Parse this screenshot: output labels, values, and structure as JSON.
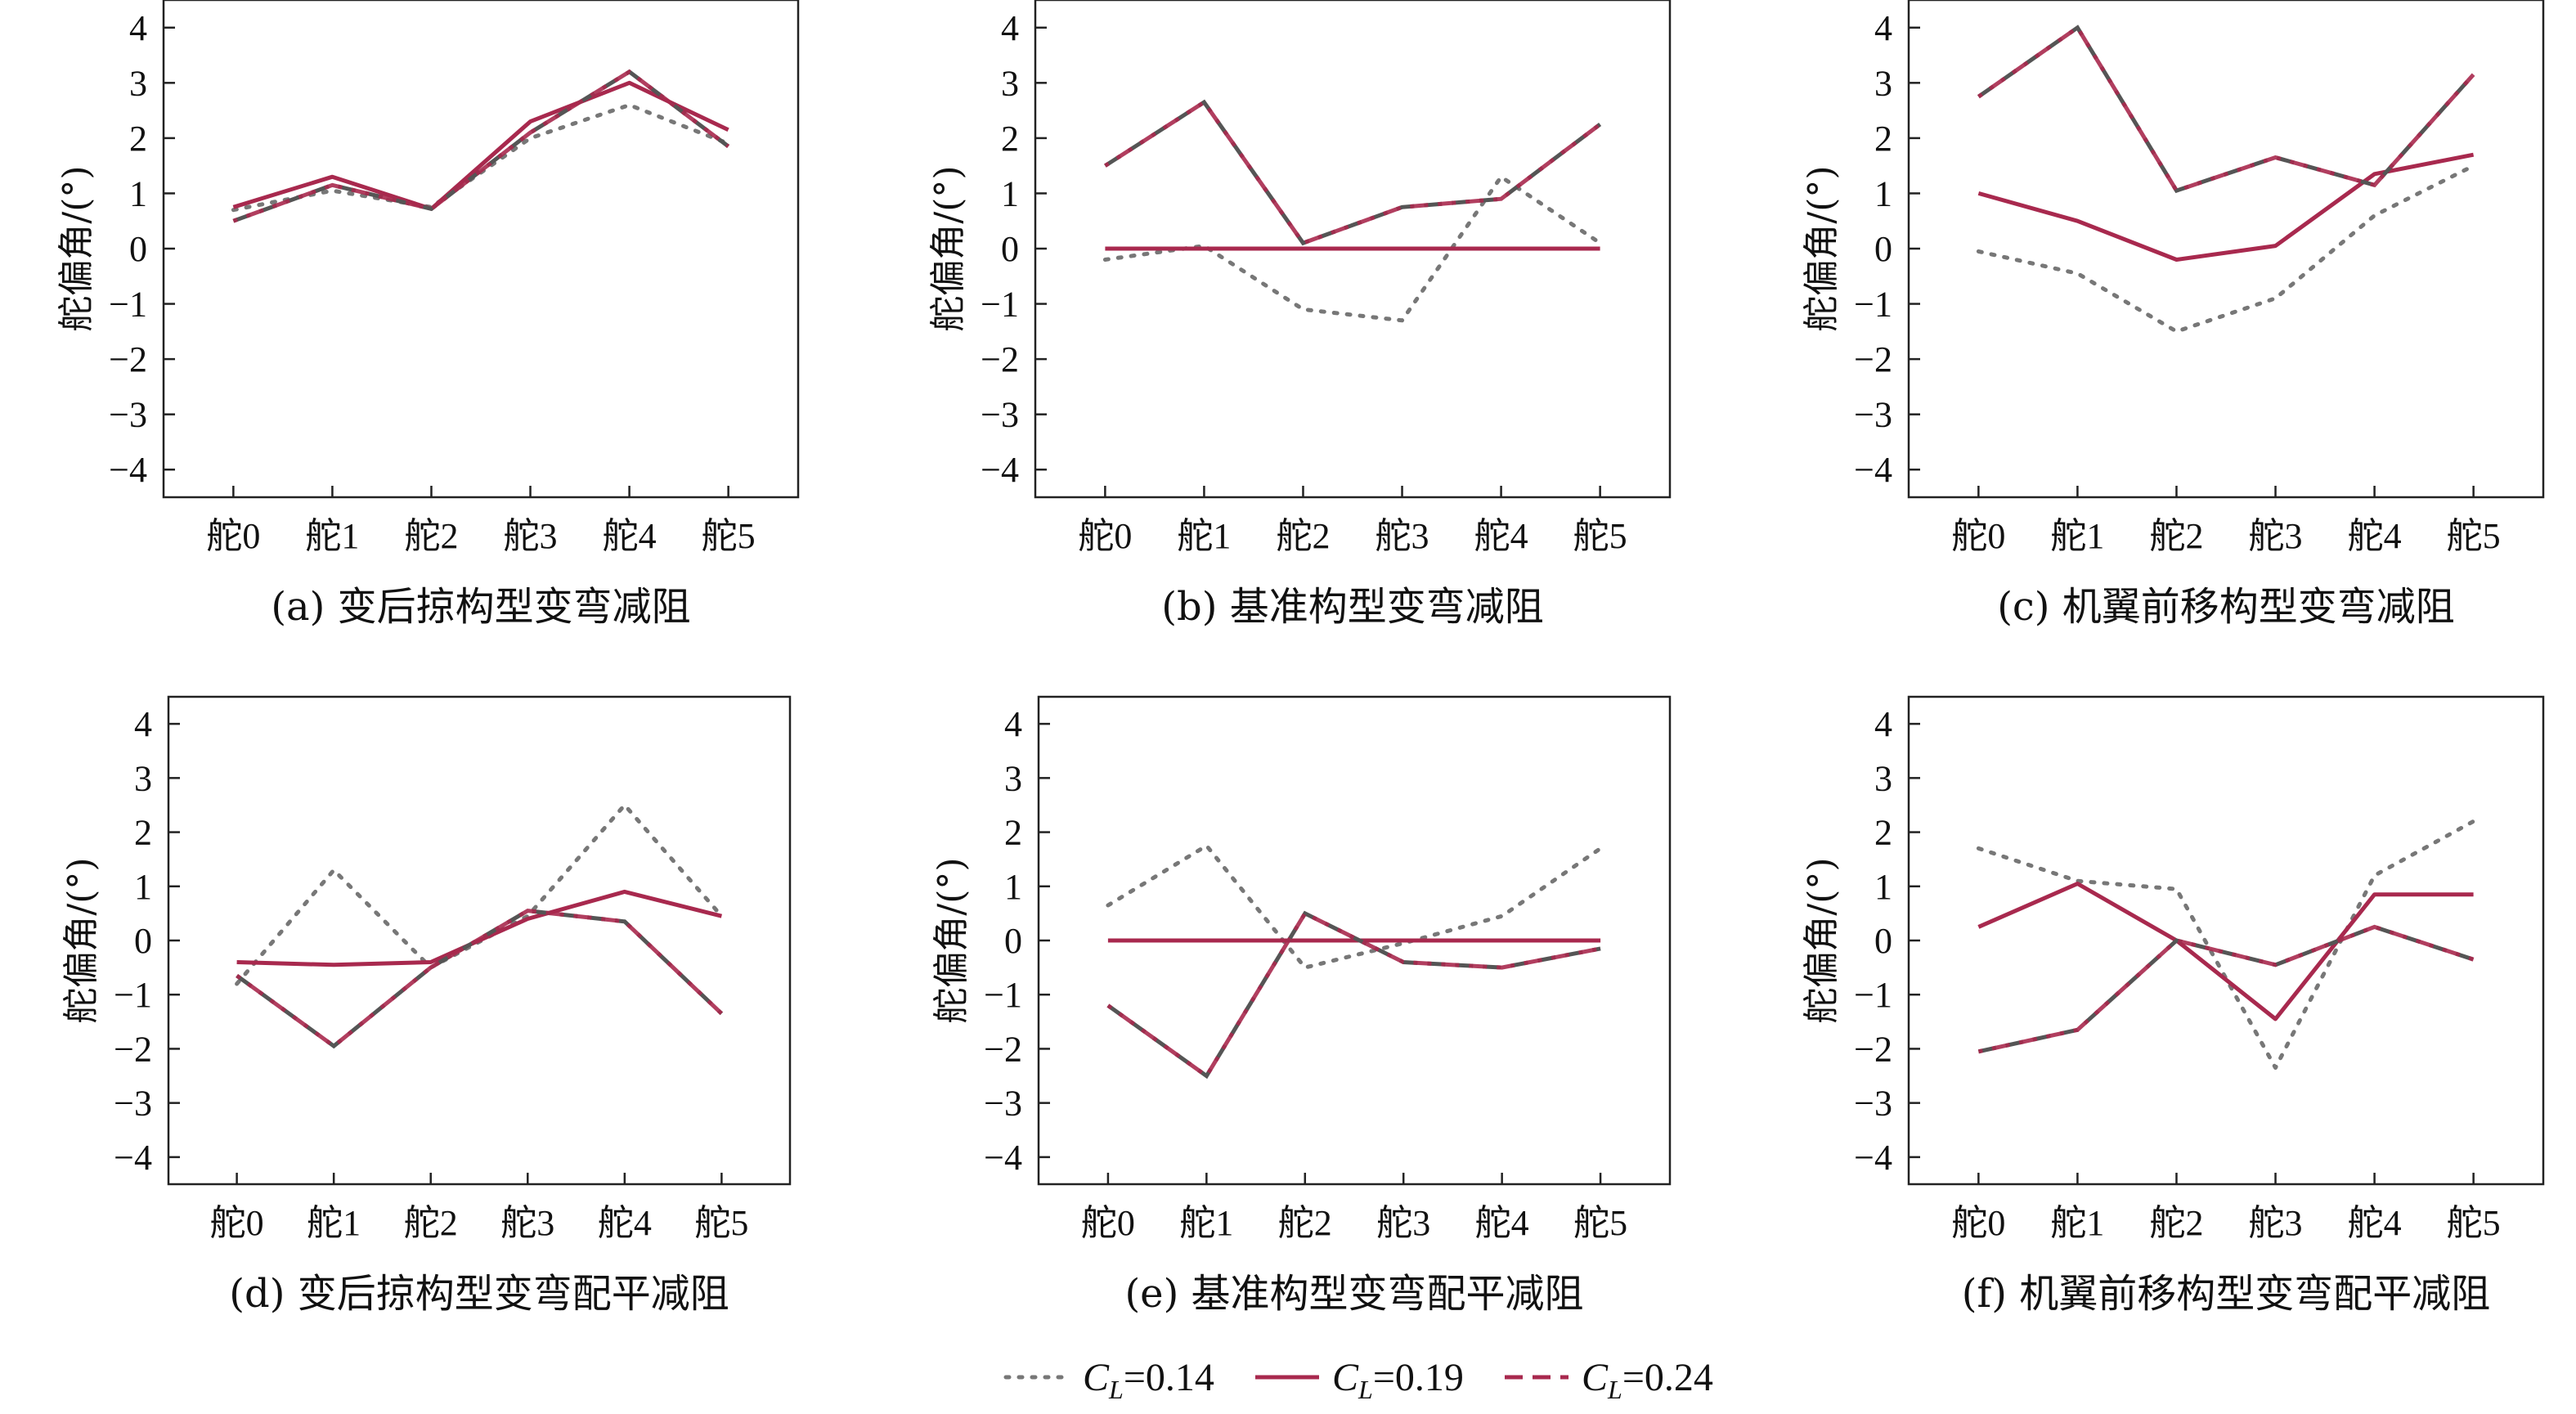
{
  "legend": [
    {
      "var": "C",
      "sub": "L",
      "value": "=0.14",
      "style": "dotted",
      "color": "#777777"
    },
    {
      "var": "C",
      "sub": "L",
      "value": "=0.19",
      "style": "solid",
      "color": "#a8294e"
    },
    {
      "var": "C",
      "sub": "L",
      "value": "=0.24",
      "style": "dashed",
      "color": "#a8294e"
    }
  ],
  "colors": {
    "series_014": "#777777",
    "series_019": "#a8294e",
    "series_024_a": "#a8294e",
    "series_024_b": "#555555"
  },
  "chart_data": [
    {
      "type": "line",
      "caption": "(a) 变后掠构型变弯减阻",
      "ylabel": "舵偏角/(°)",
      "categories": [
        "舵0",
        "舵1",
        "舵2",
        "舵3",
        "舵4",
        "舵5"
      ],
      "ylim": [
        -4.5,
        4.5
      ],
      "yticks": [
        -4,
        -3,
        -2,
        -1,
        0,
        1,
        2,
        3,
        4
      ],
      "series": [
        {
          "key": "014",
          "values": [
            0.7,
            1.05,
            0.75,
            2.0,
            2.6,
            1.9
          ]
        },
        {
          "key": "019",
          "values": [
            0.75,
            1.3,
            0.72,
            2.3,
            3.0,
            2.15
          ]
        },
        {
          "key": "024",
          "values": [
            0.5,
            1.15,
            0.72,
            2.1,
            3.2,
            1.85
          ]
        }
      ]
    },
    {
      "type": "line",
      "caption": "(b) 基准构型变弯减阻",
      "ylabel": "舵偏角/(°)",
      "categories": [
        "舵0",
        "舵1",
        "舵2",
        "舵3",
        "舵4",
        "舵5"
      ],
      "ylim": [
        -4.5,
        4.5
      ],
      "yticks": [
        -4,
        -3,
        -2,
        -1,
        0,
        1,
        2,
        3,
        4
      ],
      "series": [
        {
          "key": "014",
          "values": [
            -0.2,
            0.05,
            -1.1,
            -1.3,
            1.3,
            0.1
          ]
        },
        {
          "key": "019",
          "values": [
            0.0,
            0.0,
            0.0,
            0.0,
            0.0,
            0.0
          ]
        },
        {
          "key": "024",
          "values": [
            1.5,
            2.65,
            0.1,
            0.75,
            0.9,
            2.25
          ]
        }
      ]
    },
    {
      "type": "line",
      "caption": "(c) 机翼前移构型变弯减阻",
      "ylabel": "舵偏角/(°)",
      "categories": [
        "舵0",
        "舵1",
        "舵2",
        "舵3",
        "舵4",
        "舵5"
      ],
      "ylim": [
        -4.5,
        4.5
      ],
      "yticks": [
        -4,
        -3,
        -2,
        -1,
        0,
        1,
        2,
        3,
        4
      ],
      "series": [
        {
          "key": "014",
          "values": [
            -0.05,
            -0.45,
            -1.5,
            -0.9,
            0.6,
            1.5
          ]
        },
        {
          "key": "019",
          "values": [
            1.0,
            0.5,
            -0.2,
            0.05,
            1.35,
            1.7
          ]
        },
        {
          "key": "024",
          "values": [
            2.75,
            4.0,
            1.05,
            1.65,
            1.15,
            3.15
          ]
        }
      ]
    },
    {
      "type": "line",
      "caption": "(d) 变后掠构型变弯配平减阻",
      "ylabel": "舵偏角/(°)",
      "categories": [
        "舵0",
        "舵1",
        "舵2",
        "舵3",
        "舵4",
        "舵5"
      ],
      "ylim": [
        -4.5,
        4.5
      ],
      "yticks": [
        -4,
        -3,
        -2,
        -1,
        0,
        1,
        2,
        3,
        4
      ],
      "series": [
        {
          "key": "014",
          "values": [
            -0.8,
            1.3,
            -0.5,
            0.45,
            2.5,
            0.45
          ]
        },
        {
          "key": "019",
          "values": [
            -0.4,
            -0.45,
            -0.4,
            0.4,
            0.9,
            0.45
          ]
        },
        {
          "key": "024",
          "values": [
            -0.65,
            -1.95,
            -0.5,
            0.55,
            0.35,
            -1.35
          ]
        }
      ]
    },
    {
      "type": "line",
      "caption": "(e) 基准构型变弯配平减阻",
      "ylabel": "舵偏角/(°)",
      "categories": [
        "舵0",
        "舵1",
        "舵2",
        "舵3",
        "舵4",
        "舵5"
      ],
      "ylim": [
        -4.5,
        4.5
      ],
      "yticks": [
        -4,
        -3,
        -2,
        -1,
        0,
        1,
        2,
        3,
        4
      ],
      "series": [
        {
          "key": "014",
          "values": [
            0.65,
            1.75,
            -0.5,
            -0.05,
            0.45,
            1.7
          ]
        },
        {
          "key": "019",
          "values": [
            0.0,
            0.0,
            0.0,
            0.0,
            0.0,
            0.0
          ]
        },
        {
          "key": "024",
          "values": [
            -1.2,
            -2.5,
            0.5,
            -0.4,
            -0.5,
            -0.15
          ]
        }
      ]
    },
    {
      "type": "line",
      "caption": "(f) 机翼前移构型变弯配平减阻",
      "ylabel": "舵偏角/(°)",
      "categories": [
        "舵0",
        "舵1",
        "舵2",
        "舵3",
        "舵4",
        "舵5"
      ],
      "ylim": [
        -4.5,
        4.5
      ],
      "yticks": [
        -4,
        -3,
        -2,
        -1,
        0,
        1,
        2,
        3,
        4
      ],
      "series": [
        {
          "key": "014",
          "values": [
            1.7,
            1.1,
            0.95,
            -2.35,
            1.2,
            2.2
          ]
        },
        {
          "key": "019",
          "values": [
            0.25,
            1.05,
            0.0,
            -1.45,
            0.85,
            0.85
          ]
        },
        {
          "key": "024",
          "values": [
            -2.05,
            -1.65,
            0.0,
            -0.45,
            0.25,
            -0.35
          ]
        }
      ]
    }
  ]
}
